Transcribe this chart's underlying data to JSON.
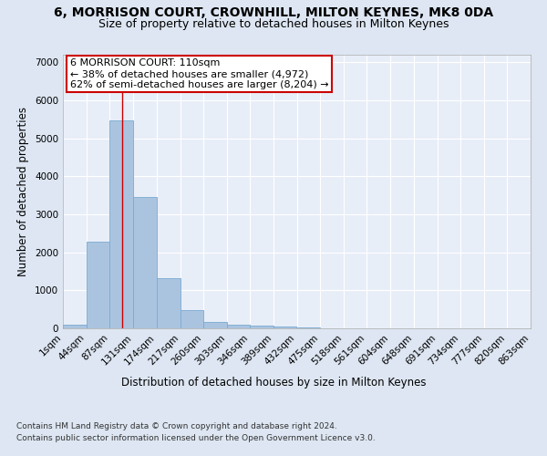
{
  "title1": "6, MORRISON COURT, CROWNHILL, MILTON KEYNES, MK8 0DA",
  "title2": "Size of property relative to detached houses in Milton Keynes",
  "xlabel": "Distribution of detached houses by size in Milton Keynes",
  "ylabel": "Number of detached properties",
  "footnote1": "Contains HM Land Registry data © Crown copyright and database right 2024.",
  "footnote2": "Contains public sector information licensed under the Open Government Licence v3.0.",
  "annotation_title": "6 MORRISON COURT: 110sqm",
  "annotation_line1": "← 38% of detached houses are smaller (4,972)",
  "annotation_line2": "62% of semi-detached houses are larger (8,204) →",
  "bar_values": [
    100,
    2280,
    5480,
    3450,
    1320,
    480,
    160,
    100,
    80,
    50,
    20,
    10,
    5,
    3,
    2,
    1,
    1,
    1,
    0,
    0
  ],
  "bar_color": "#aac4e0",
  "bar_edge_color": "#7aaad0",
  "bin_edges": [
    1,
    44,
    87,
    131,
    174,
    217,
    260,
    303,
    346,
    389,
    432,
    475,
    518,
    561,
    604,
    648,
    691,
    734,
    777,
    820,
    863
  ],
  "bin_labels": [
    "1sqm",
    "44sqm",
    "87sqm",
    "131sqm",
    "174sqm",
    "217sqm",
    "260sqm",
    "303sqm",
    "346sqm",
    "389sqm",
    "432sqm",
    "475sqm",
    "518sqm",
    "561sqm",
    "604sqm",
    "648sqm",
    "691sqm",
    "734sqm",
    "777sqm",
    "820sqm",
    "863sqm"
  ],
  "red_line_x": 110,
  "ylim": [
    0,
    7200
  ],
  "yticks": [
    0,
    1000,
    2000,
    3000,
    4000,
    5000,
    6000,
    7000
  ],
  "bg_color": "#dde6f2",
  "plot_bg_color": "#e8eef8",
  "grid_color": "#ffffff",
  "annotation_box_color": "#ffffff",
  "annotation_box_edge": "#cc0000",
  "title1_fontsize": 10,
  "title2_fontsize": 9,
  "axis_label_fontsize": 8.5,
  "tick_fontsize": 7.5,
  "annotation_fontsize": 8
}
